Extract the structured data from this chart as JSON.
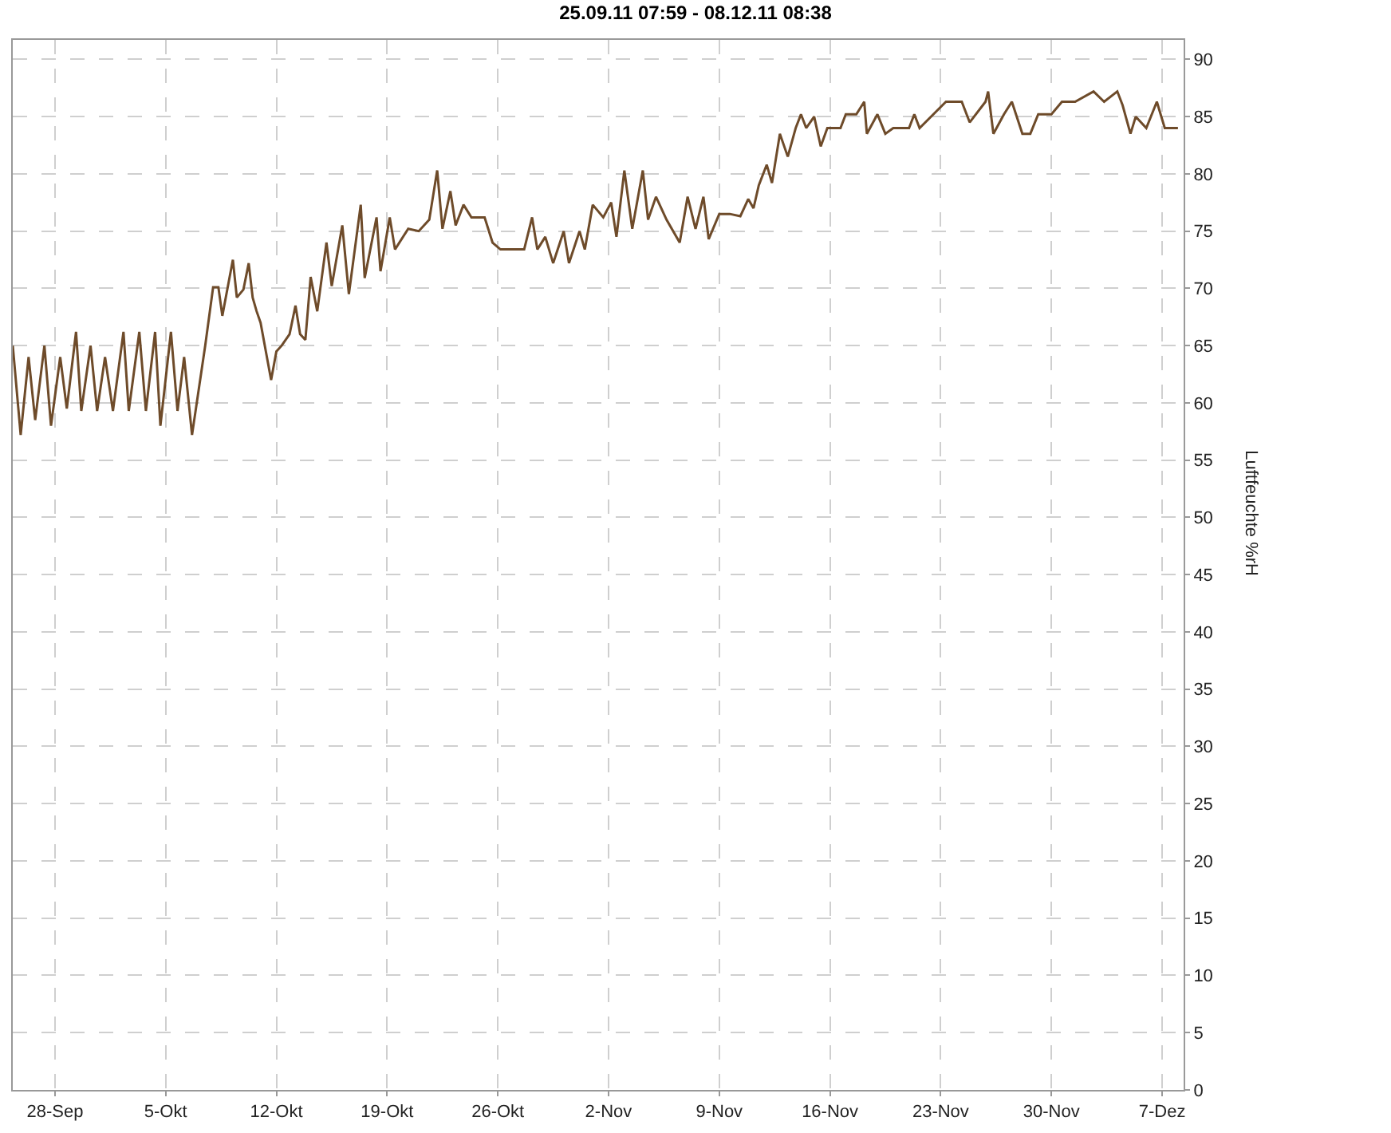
{
  "chart_data": {
    "type": "line",
    "title": "25.09.11 07:59 - 08.12.11 08:38",
    "ylabel": "Luftfeuchte %rH",
    "x": [
      "--09-25T08:00",
      "--09-25T20:00",
      "--09-26T08:00",
      "--09-26T18:00",
      "--09-27T08:00",
      "--09-27T18:00",
      "--09-28T08:00",
      "--09-28T18:00",
      "--09-29T08:00",
      "--09-29T16:00",
      "--09-30T06:00",
      "--09-30T16:00",
      "--10-01T04:00",
      "--10-01T16:00",
      "--10-02T08:00",
      "--10-02T16:00",
      "--10-03T08:00",
      "--10-03T18:00",
      "--10-04T08:00",
      "--10-04T16:00",
      "--10-05T08:00",
      "--10-05T18:00",
      "--10-06T04:00",
      "--10-06T16:00",
      "--10-07T12:00",
      "--10-08T00:00",
      "--10-08T08:00",
      "--10-08T14:00",
      "--10-09T06:00",
      "--10-09T12:00",
      "--10-09T22:00",
      "--10-10T06:00",
      "--10-10T12:00",
      "--10-10T18:00",
      "--10-11T00:00",
      "--10-11T16:00",
      "--10-12T00:00",
      "--10-12T08:00",
      "--10-12T20:00",
      "--10-13T05:00",
      "--10-13T12:00",
      "--10-13T20:00",
      "--10-14T04:00",
      "--10-14T14:00",
      "--10-15T04:00",
      "--10-15T12:00",
      "--10-16T04:00",
      "--10-16T14:00",
      "--10-17T08:00",
      "--10-17T14:00",
      "--10-18T08:00",
      "--10-18T14:00",
      "--10-19T04:00",
      "--10-19T12:00",
      "--10-20T08:00",
      "--10-21T00:00",
      "--10-21T16:00",
      "--10-22T04:00",
      "--10-22T12:00",
      "--10-23T00:00",
      "--10-23T08:00",
      "--10-23T20:00",
      "--10-24T08:00",
      "--10-25T04:00",
      "--10-25T16:00",
      "--10-26T04:00",
      "--10-27T16:00",
      "--10-28T04:00",
      "--10-28T12:00",
      "--10-29T00:00",
      "--10-29T12:00",
      "--10-30T04:00",
      "--10-30T12:00",
      "--10-31T04:00",
      "--10-31T12:00",
      "--11-01T00:00",
      "--11-01T16:00",
      "--11-02T04:00",
      "--11-02T12:00",
      "--11-03T00:00",
      "--11-03T12:00",
      "--11-04T04:00",
      "--11-04T12:00",
      "--11-05T00:00",
      "--11-05T16:00",
      "--11-06T12:00",
      "--11-07T00:00",
      "--11-07T12:00",
      "--11-08T00:00",
      "--11-08T08:00",
      "--11-09T00:00",
      "--11-09T16:00",
      "--11-10T08:00",
      "--11-10T20:00",
      "--11-11T04:00",
      "--11-11T12:00",
      "--11-12T00:00",
      "--11-12T08:00",
      "--11-12T20:00",
      "--11-13T08:00",
      "--11-13T20:00",
      "--11-14T04:00",
      "--11-14T12:00",
      "--11-15T00:00",
      "--11-15T10:00",
      "--11-15T20:00",
      "--11-16T16:00",
      "--11-17T00:00",
      "--11-17T16:00",
      "--11-18T04:00",
      "--11-18T08:00",
      "--11-19T00:00",
      "--11-19T12:00",
      "--11-20T00:00",
      "--11-21T00:00",
      "--11-21T08:00",
      "--11-21T16:00",
      "--11-23T08:00",
      "--11-24T08:00",
      "--11-24T20:00",
      "--11-25T20:00",
      "--11-26T00:00",
      "--11-26T08:00",
      "--11-27T00:00",
      "--11-27T12:00",
      "--11-28T04:00",
      "--11-28T16:00",
      "--11-29T04:00",
      "--11-30T00:00",
      "--11-30T16:00",
      "--12-01T12:00",
      "--12-02T16:00",
      "--12-03T08:00",
      "--12-04T04:00",
      "--12-04T12:00",
      "--12-05T00:00",
      "--12-05T08:00",
      "--12-06T00:00",
      "--12-06T16:00",
      "--12-07T04:00",
      "--12-08T00:00"
    ],
    "series": [
      {
        "color": "#6e4b2a",
        "values": [
          65,
          57.2,
          64,
          58.5,
          65,
          58,
          64,
          59.5,
          66.2,
          59.3,
          65,
          59.3,
          64,
          59.3,
          66.2,
          59.3,
          66.2,
          59.3,
          66.2,
          58,
          66.2,
          59.3,
          64,
          57.2,
          65,
          70.1,
          70.1,
          67.6,
          72.5,
          69.2,
          69.9,
          72.2,
          69.2,
          68,
          67,
          62,
          64.5,
          65,
          66,
          68.5,
          66,
          65.5,
          71,
          68,
          74,
          70.2,
          75.5,
          69.5,
          77.3,
          70.9,
          76.2,
          71.5,
          76.2,
          73.4,
          75.2,
          75,
          76,
          80.3,
          75.2,
          78.5,
          75.5,
          77.3,
          76.2,
          76.2,
          74,
          73.4,
          73.4,
          76.2,
          73.4,
          74.5,
          72.2,
          75,
          72.2,
          75,
          73.4,
          77.3,
          76.2,
          77.5,
          74.5,
          80.3,
          75.2,
          80.3,
          76,
          78,
          76,
          74,
          78,
          75.2,
          78,
          74.3,
          76.5,
          76.5,
          76.3,
          77.8,
          77,
          79,
          80.8,
          79.2,
          83.5,
          81.5,
          84,
          85.2,
          84,
          85,
          82.4,
          84,
          84,
          85.2,
          85.2,
          86.3,
          83.5,
          85.2,
          83.5,
          84,
          84,
          85.2,
          84,
          86.3,
          86.3,
          84.5,
          86.3,
          87.2,
          83.5,
          85.2,
          86.3,
          83.5,
          83.5,
          85.2,
          85.2,
          86.3,
          86.3,
          87.2,
          86.3,
          87.2,
          86,
          83.5,
          85,
          84,
          86.3,
          84,
          84
        ]
      }
    ],
    "xlim": [
      "--09-25T07:59",
      "--12-08T08:38"
    ],
    "xticks": [
      {
        "value": "--09-28",
        "label": "28-Sep"
      },
      {
        "value": "--10-05",
        "label": "5-Okt"
      },
      {
        "value": "--10-12",
        "label": "12-Okt"
      },
      {
        "value": "--10-19",
        "label": "19-Okt"
      },
      {
        "value": "--10-26",
        "label": "26-Okt"
      },
      {
        "value": "--11-02",
        "label": "2-Nov"
      },
      {
        "value": "--11-09",
        "label": "9-Nov"
      },
      {
        "value": "--11-16",
        "label": "16-Nov"
      },
      {
        "value": "--11-23",
        "label": "23-Nov"
      },
      {
        "value": "--11-30",
        "label": "30-Nov"
      },
      {
        "value": "--12-07",
        "label": "7-Dez"
      }
    ],
    "ylim": [
      0,
      91.7
    ],
    "yticks": [
      0,
      5,
      10,
      15,
      20,
      25,
      30,
      35,
      40,
      45,
      50,
      55,
      60,
      65,
      70,
      75,
      80,
      85,
      90
    ],
    "grid": true,
    "line_style": "solid",
    "marker": "none"
  }
}
